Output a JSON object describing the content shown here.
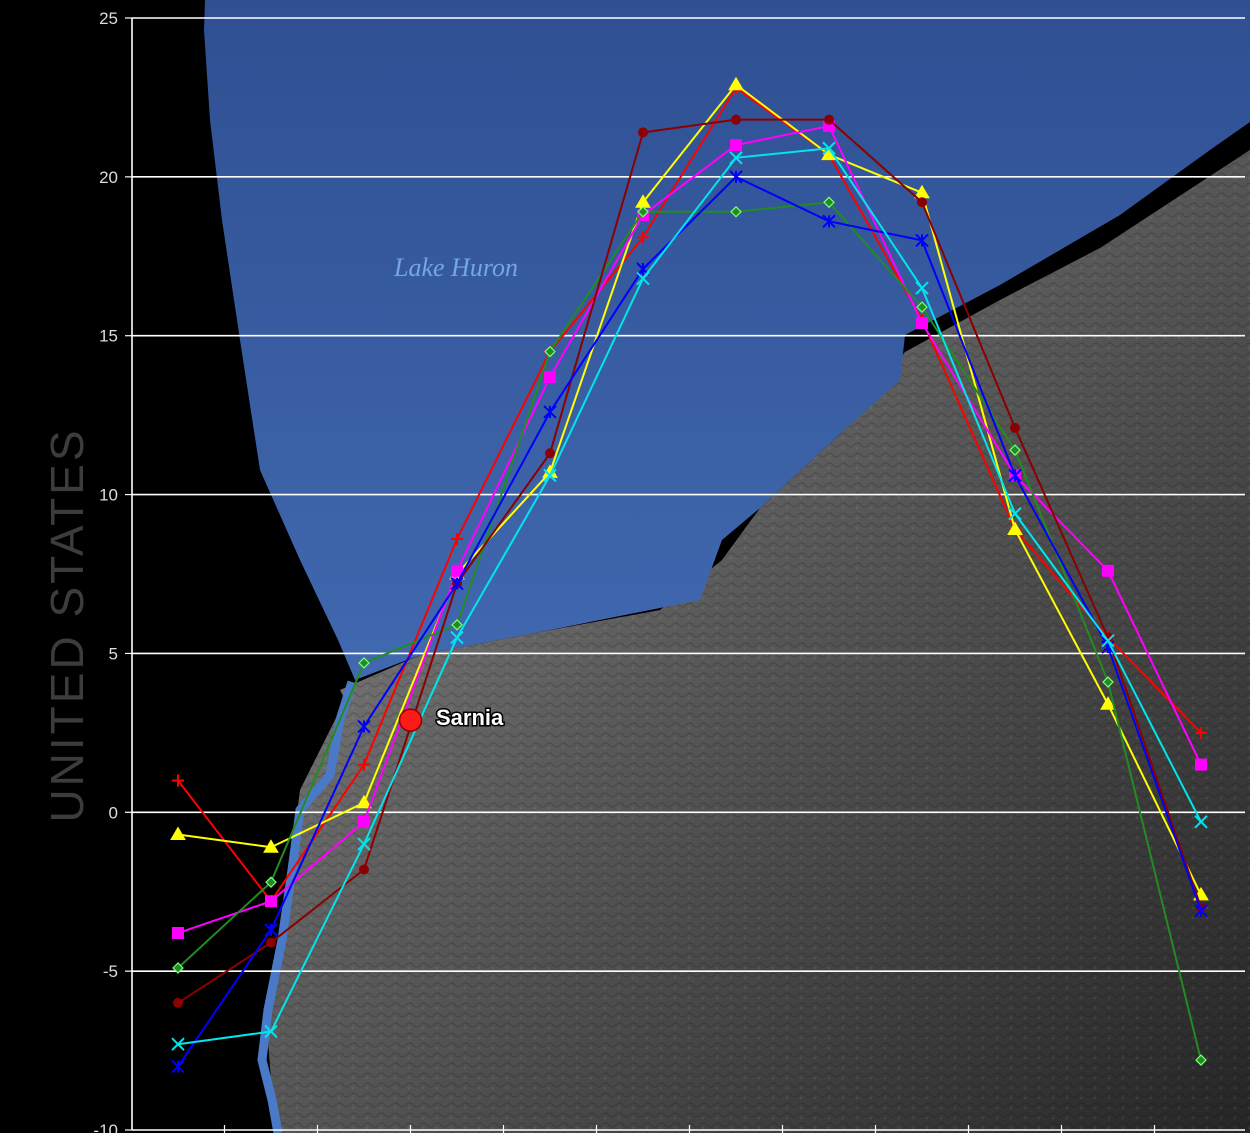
{
  "chart_data": {
    "type": "line",
    "x": [
      1,
      2,
      3,
      4,
      5,
      6,
      7,
      8,
      9,
      10,
      11,
      12
    ],
    "ylim": [
      -10,
      25
    ],
    "yticks": [
      25,
      20,
      15,
      10,
      5,
      0,
      -5,
      -10
    ],
    "ytick_labels": [
      "25",
      "20",
      "15",
      "10",
      "5",
      "0",
      "-5",
      "-10"
    ],
    "grid": true,
    "series": [
      {
        "color": "#ff0000",
        "marker": "plus",
        "values": [
          1.0,
          -2.8,
          1.5,
          8.6,
          14.5,
          18.1,
          22.8,
          20.7,
          15.5,
          8.9,
          5.5,
          2.5
        ]
      },
      {
        "color": "#ffff00",
        "marker": "triangle",
        "values": [
          -0.7,
          -1.1,
          0.3,
          7.5,
          10.7,
          19.2,
          22.9,
          20.7,
          19.5,
          8.9,
          3.4,
          -2.6
        ]
      },
      {
        "color": "#ff00ff",
        "marker": "square",
        "values": [
          -3.8,
          -2.8,
          -0.3,
          7.6,
          13.7,
          18.8,
          21.0,
          21.6,
          15.4,
          10.6,
          7.6,
          1.5
        ]
      },
      {
        "color": "#228b22",
        "marker": "diamond",
        "values": [
          -4.9,
          -2.2,
          4.7,
          5.9,
          14.5,
          18.9,
          18.9,
          19.2,
          15.9,
          11.4,
          4.1,
          -7.8
        ]
      },
      {
        "color": "#8b0000",
        "marker": "circle",
        "values": [
          -6.0,
          -4.1,
          -1.8,
          7.2,
          11.3,
          21.4,
          21.8,
          21.8,
          19.2,
          12.1,
          5.5,
          -3.0
        ]
      },
      {
        "color": "#0000ff",
        "marker": "star",
        "values": [
          -8.0,
          -3.7,
          2.7,
          7.2,
          12.6,
          17.1,
          20.0,
          18.6,
          18.0,
          10.6,
          5.2,
          -3.1
        ]
      },
      {
        "color": "#00e5ee",
        "marker": "x",
        "values": [
          -7.3,
          -6.9,
          -1.0,
          5.5,
          10.6,
          16.8,
          20.6,
          20.9,
          16.5,
          9.4,
          5.4,
          -0.3
        ]
      }
    ],
    "annotations": {
      "watermark": "UNITED STATES",
      "lake": "Lake Huron",
      "city": "Sarnia"
    },
    "city_point": {
      "x": 3.5,
      "y": 2.9,
      "color": "#ff1a1a"
    }
  },
  "colors": {
    "background": "#000000",
    "lake": "#3d62a8",
    "land": "#5e5e5e",
    "river": "#4a79c8",
    "grid": "#ffffff"
  }
}
